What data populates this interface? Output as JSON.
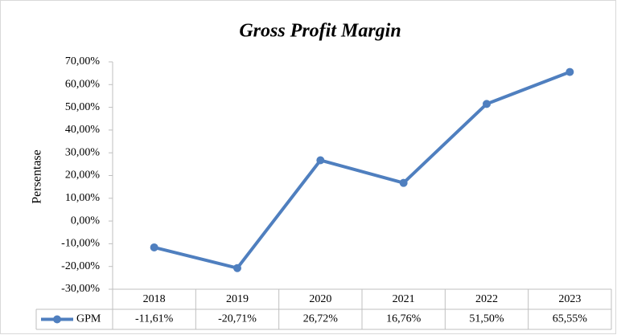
{
  "chart_data": {
    "type": "line",
    "title": "Gross Profit Margin",
    "y_label": "Persentase",
    "categories": [
      "2018",
      "2019",
      "2020",
      "2021",
      "2022",
      "2023"
    ],
    "series": [
      {
        "name": "GPM",
        "color": "#4f7fbf",
        "values": [
          -11.61,
          -20.71,
          26.72,
          16.76,
          51.5,
          65.55
        ],
        "value_labels": [
          "-11,61%",
          "-20,71%",
          "26,72%",
          "16,76%",
          "51,50%",
          "65,55%"
        ]
      }
    ],
    "ylim": [
      -30,
      70
    ],
    "yticks": [
      {
        "value": -30,
        "label": "-30,00%"
      },
      {
        "value": -20,
        "label": "-20,00%"
      },
      {
        "value": -10,
        "label": "-10,00%"
      },
      {
        "value": 0,
        "label": "0,00%"
      },
      {
        "value": 10,
        "label": "10,00%"
      },
      {
        "value": 20,
        "label": "20,00%"
      },
      {
        "value": 30,
        "label": "30,00%"
      },
      {
        "value": 40,
        "label": "40,00%"
      },
      {
        "value": 50,
        "label": "50,00%"
      },
      {
        "value": 60,
        "label": "60,00%"
      },
      {
        "value": 70,
        "label": "70,00%"
      }
    ],
    "grid": false
  }
}
